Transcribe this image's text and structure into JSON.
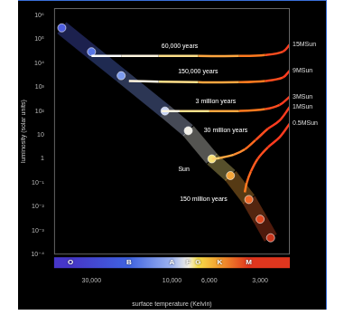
{
  "chart_data": {
    "type": "line",
    "x_label": "surface temperature (Kelvin)",
    "y_label": "luminosity (solar units)",
    "log": true,
    "grid": false,
    "xlim": [
      50000,
      2000
    ],
    "xticks": [
      {
        "value": 30000,
        "label": "30,000"
      },
      {
        "value": 10000,
        "label": "10,000"
      },
      {
        "value": 6000,
        "label": "6,000"
      },
      {
        "value": 3000,
        "label": "3,000"
      }
    ],
    "ylim": [
      0.0001,
      2000000
    ],
    "yticks": [
      {
        "value": 1000000,
        "label": "10⁶"
      },
      {
        "value": 100000,
        "label": "10⁵"
      },
      {
        "value": 10000,
        "label": "10⁴"
      },
      {
        "value": 1000,
        "label": "10³"
      },
      {
        "value": 100,
        "label": "10²"
      },
      10,
      1,
      {
        "value": 0.1,
        "label": "10⁻¹"
      },
      {
        "value": 0.01,
        "label": "10⁻²"
      },
      {
        "value": 0.001,
        "label": "10⁻³"
      },
      {
        "value": 0.0001,
        "label": "10⁻⁴"
      }
    ],
    "series": [
      {
        "marker": "circle",
        "line_style": "solid",
        "x": [
          45000,
          30000,
          20000,
          11000,
          8000,
          5800,
          4500,
          3500,
          3000,
          2600
        ],
        "values": [
          300000,
          30000,
          3000,
          100,
          15,
          1,
          0.2,
          0.02,
          0.003,
          0.0005
        ],
        "colors": [
          "#4f5fe0",
          "#5a78e8",
          "#7d9cf0",
          "#c8d4f5",
          "#f2f0e8",
          "#f7e27a",
          "#f5a63a",
          "#ee6a2a",
          "#e04a22",
          "#c8361c"
        ]
      },
      {
        "name": "15MSun",
        "marker": "none",
        "line_style": "solid",
        "x": [
          2000,
          2200,
          2800,
          4000,
          7000,
          12000,
          20000,
          30000
        ],
        "values": [
          60000,
          30000,
          22000,
          20000,
          20000,
          20000,
          20000,
          20000
        ],
        "colors": [
          "#ff3b1f",
          "#ff4d1f",
          "#ff7a1f",
          "#ffa640",
          "#ffe08a",
          "#fff6e0",
          "#ffffff",
          "#ffffff"
        ]
      },
      {
        "name": "9MSun",
        "marker": "none",
        "line_style": "solid",
        "x": [
          2000,
          2200,
          2800,
          4000,
          7000,
          12000,
          18000
        ],
        "values": [
          5000,
          2500,
          1800,
          1600,
          1600,
          1700,
          1800
        ],
        "colors": [
          "#ff3b1f",
          "#ff4d1f",
          "#ff7a1f",
          "#ffa640",
          "#ffe08a",
          "#fff6e0",
          "#ffffff"
        ]
      },
      {
        "name": "3MSun",
        "marker": "none",
        "line_style": "solid",
        "x": [
          2000,
          2300,
          2800,
          4000,
          6000,
          9000,
          11500
        ],
        "values": [
          400,
          180,
          120,
          100,
          100,
          100,
          100
        ],
        "colors": [
          "#ff3b1f",
          "#ff4d1f",
          "#ff7a1f",
          "#ffa640",
          "#ffe08a",
          "#fff6e0",
          "#ffffff"
        ]
      },
      {
        "name": "1MSun",
        "marker": "none",
        "line_style": "solid",
        "x": [
          2000,
          2300,
          2700,
          3200,
          3700,
          4300,
          5200,
          5800
        ],
        "values": [
          150,
          40,
          18,
          6,
          2.5,
          1.5,
          1.1,
          1
        ],
        "colors": [
          "#ff3b1f",
          "#ff3b1f",
          "#ff4d1f",
          "#ff6a1f",
          "#ff8a30",
          "#ffa640",
          "#ffd070",
          "#ffe08a"
        ]
      },
      {
        "name": "0.5MSun",
        "marker": "none",
        "line_style": "solid",
        "x": [
          2000,
          2300,
          2700,
          3100,
          3400,
          3600,
          3700
        ],
        "values": [
          30,
          8,
          3,
          1,
          0.3,
          0.1,
          0.04
        ],
        "colors": [
          "#ff3b1f",
          "#ff3b1f",
          "#ff4d1f",
          "#ff5a1f",
          "#ff6a1f",
          "#ff7a20",
          "#ff8a30"
        ]
      }
    ],
    "annotations": [
      {
        "text": "60,000 years",
        "x": 9000,
        "y": 50000
      },
      {
        "text": "150,000 years",
        "x": 7000,
        "y": 4500
      },
      {
        "text": "3 million years",
        "x": 5500,
        "y": 250
      },
      {
        "text": "30 million years",
        "x": 4800,
        "y": 15
      },
      {
        "text": "150 million years",
        "x": 6500,
        "y": 0.02
      },
      {
        "text": "Sun",
        "x": 8500,
        "y": 0.35
      }
    ],
    "spectral_classes": [
      {
        "label": "O",
        "value": 40000,
        "color": "#4636c8"
      },
      {
        "label": "B",
        "value": 18000,
        "color": "#3f63e0"
      },
      {
        "label": "A",
        "value": 10000,
        "color": "#9fb4f0"
      },
      {
        "label": "F",
        "value": 8000,
        "color": "#f4f1e6"
      },
      {
        "label": "G",
        "value": 7000,
        "color": "#f6dd4a"
      },
      {
        "label": "K",
        "value": 5200,
        "color": "#f29a2e"
      },
      {
        "label": "M",
        "value": 3500,
        "color": "#e0361e"
      }
    ]
  }
}
